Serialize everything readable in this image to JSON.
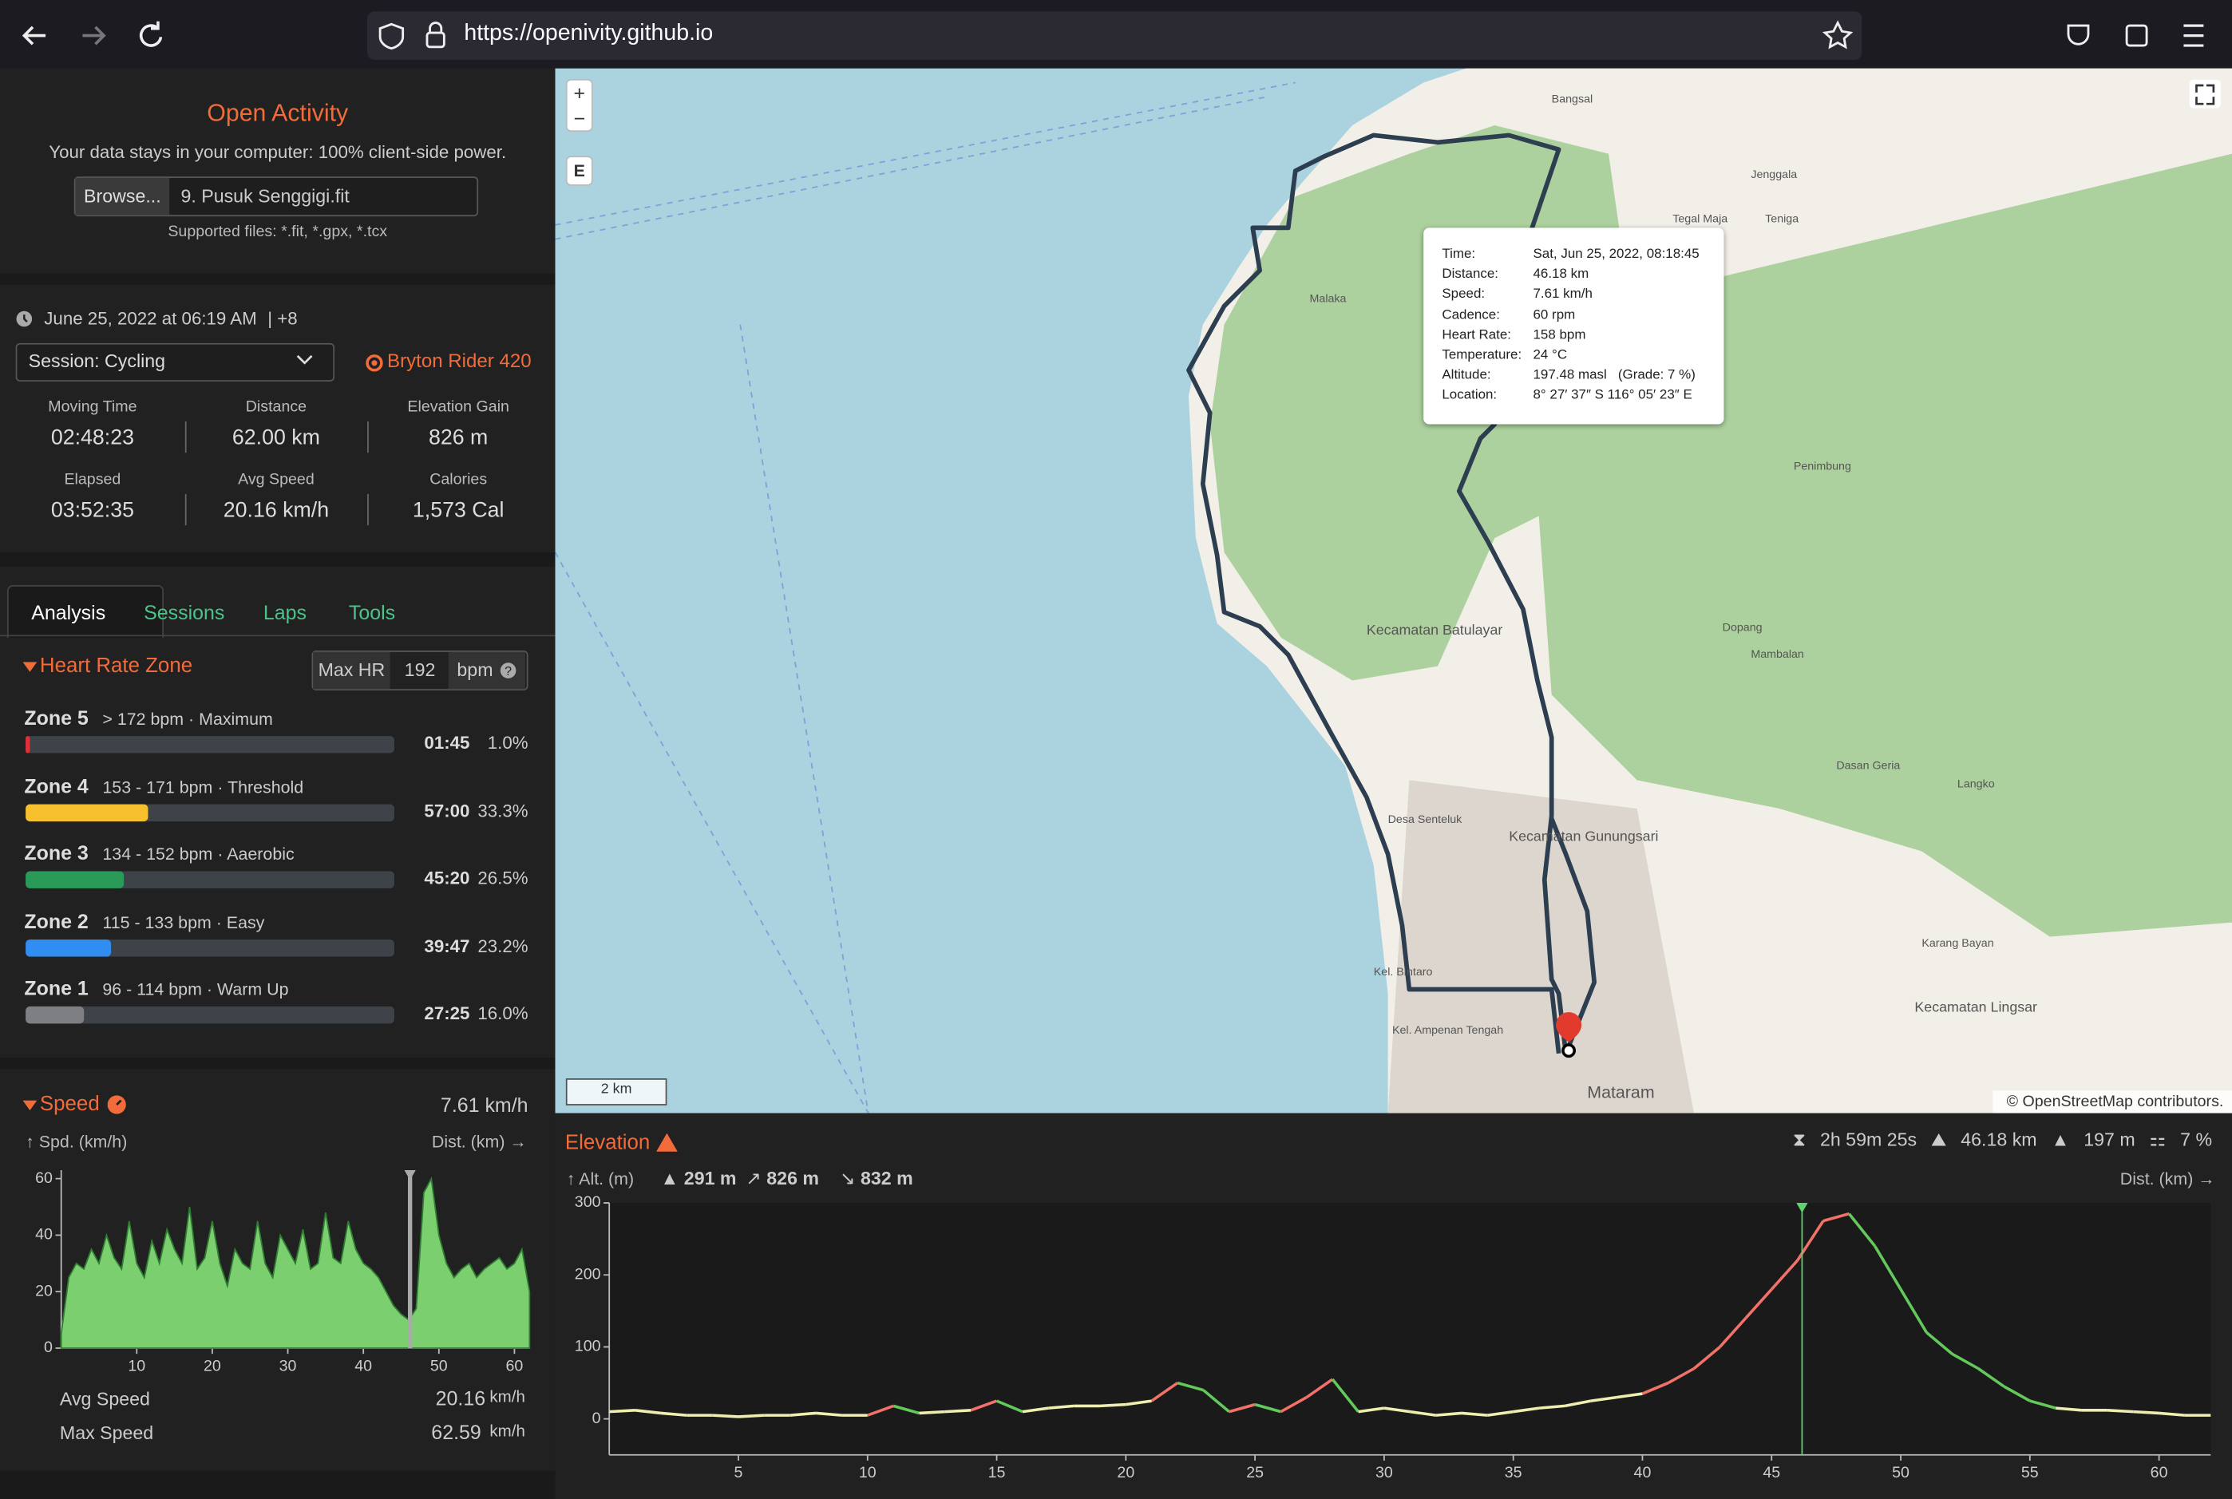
{
  "browser": {
    "url": "https://openivity.github.io"
  },
  "sidebar": {
    "title": "Open Activity",
    "tagline": "Your data stays in your computer: 100% client-side power.",
    "browse": "Browse...",
    "file": "9. Pusuk Senggigi.fit",
    "supported": "Supported files: *.fit, *.gpx, *.tcx"
  },
  "session": {
    "date": "June 25, 2022 at 06:19 AM",
    "tz": "| +8",
    "select": "Session: Cycling",
    "device": "Bryton Rider 420",
    "stats": [
      {
        "label": "Moving Time",
        "value": "02:48:23"
      },
      {
        "label": "Distance",
        "value": "62.00 km"
      },
      {
        "label": "Elevation Gain",
        "value": "826 m"
      },
      {
        "label": "Elapsed",
        "value": "03:52:35"
      },
      {
        "label": "Avg Speed",
        "value": "20.16 km/h"
      },
      {
        "label": "Calories",
        "value": "1,573 Cal"
      }
    ]
  },
  "tabs": [
    "Analysis",
    "Sessions",
    "Laps",
    "Tools"
  ],
  "hr_zone": {
    "title": "Heart Rate Zone",
    "max_hr_label": "Max HR",
    "max_hr": "192",
    "unit": "bpm",
    "zones": [
      {
        "name": "Zone 5",
        "range": "> 172 bpm · Maximum",
        "time": "01:45",
        "percent": 1.0,
        "percent_label": "1.0%",
        "color": "#e0303a"
      },
      {
        "name": "Zone 4",
        "range": "153 - 171 bpm · Threshold",
        "time": "57:00",
        "percent": 33.3,
        "percent_label": "33.3%",
        "color": "#f6c12c"
      },
      {
        "name": "Zone 3",
        "range": "134 - 152 bpm · Aaerobic",
        "time": "45:20",
        "percent": 26.5,
        "percent_label": "26.5%",
        "color": "#2a9a58"
      },
      {
        "name": "Zone 2",
        "range": "115 - 133 bpm · Easy",
        "time": "39:47",
        "percent": 23.2,
        "percent_label": "23.2%",
        "color": "#2f8ef0"
      },
      {
        "name": "Zone 1",
        "range": "96 - 114 bpm · Warm Up",
        "time": "27:25",
        "percent": 16.0,
        "percent_label": "16.0%",
        "color": "#7d7f83"
      }
    ]
  },
  "speed": {
    "type": "area",
    "title": "Speed",
    "current": "7.61 km/h",
    "y_label": "↑ Spd. (km/h)",
    "x_label": "Dist. (km) →",
    "color": "#7ccf6e",
    "xlim": [
      0,
      62
    ],
    "ylim": [
      0,
      63
    ],
    "xticks": [
      10,
      20,
      30,
      40,
      50,
      60
    ],
    "yticks": [
      0,
      20,
      40,
      60
    ],
    "cursor": 46.18,
    "x": [
      0,
      1,
      2,
      3,
      4,
      5,
      6,
      7,
      8,
      9,
      10,
      11,
      12,
      13,
      14,
      15,
      16,
      17,
      18,
      19,
      20,
      21,
      22,
      23,
      24,
      25,
      26,
      27,
      28,
      29,
      30,
      31,
      32,
      33,
      34,
      35,
      36,
      37,
      38,
      39,
      40,
      41,
      42,
      43,
      44,
      45,
      46,
      47,
      48,
      49,
      50,
      51,
      52,
      53,
      54,
      55,
      56,
      57,
      58,
      59,
      60,
      61,
      62
    ],
    "values": [
      5,
      25,
      30,
      28,
      35,
      30,
      40,
      32,
      28,
      45,
      30,
      25,
      38,
      30,
      42,
      35,
      30,
      50,
      28,
      32,
      45,
      30,
      22,
      35,
      30,
      28,
      45,
      30,
      25,
      40,
      35,
      30,
      42,
      28,
      30,
      48,
      32,
      30,
      45,
      35,
      30,
      28,
      25,
      20,
      15,
      12,
      10,
      14,
      55,
      60,
      40,
      30,
      25,
      28,
      30,
      25,
      28,
      30,
      32,
      28,
      30,
      35,
      20
    ],
    "avg_label": "Avg Speed",
    "avg": "20.16",
    "max_label": "Max Speed",
    "max": "62.59",
    "unit": "km/h"
  },
  "elevation": {
    "type": "line",
    "title": "Elevation",
    "summary": [
      "2h 59m 25s",
      "46.18 km",
      "197 m",
      "7 %"
    ],
    "y_label": "↑ Alt. (m)",
    "max": "291 m",
    "gain": "826 m",
    "loss": "832 m",
    "x_label": "Dist. (km) →",
    "xlim": [
      0,
      62
    ],
    "ylim": [
      -50,
      300
    ],
    "xticks": [
      5,
      10,
      15,
      20,
      25,
      30,
      35,
      40,
      45,
      50,
      55,
      60
    ],
    "yticks": [
      0,
      100,
      200,
      300
    ],
    "cursor": 46.18,
    "x": [
      0,
      1,
      2,
      3,
      4,
      5,
      6,
      7,
      8,
      9,
      10,
      11,
      12,
      13,
      14,
      15,
      16,
      17,
      18,
      19,
      20,
      21,
      22,
      23,
      24,
      25,
      26,
      27,
      28,
      29,
      30,
      31,
      32,
      33,
      34,
      35,
      36,
      37,
      38,
      39,
      40,
      41,
      42,
      43,
      44,
      45,
      46,
      47,
      48,
      49,
      50,
      51,
      52,
      53,
      54,
      55,
      56,
      57,
      58,
      59,
      60,
      61,
      62
    ],
    "values": [
      10,
      12,
      8,
      5,
      5,
      3,
      5,
      5,
      8,
      5,
      5,
      18,
      8,
      10,
      12,
      25,
      10,
      15,
      18,
      18,
      20,
      25,
      50,
      40,
      10,
      20,
      10,
      30,
      55,
      10,
      15,
      10,
      5,
      8,
      5,
      10,
      15,
      18,
      25,
      30,
      35,
      50,
      70,
      100,
      140,
      180,
      220,
      275,
      285,
      240,
      180,
      120,
      90,
      70,
      45,
      25,
      15,
      12,
      12,
      10,
      8,
      5,
      5
    ]
  },
  "map": {
    "zoom_in": "+",
    "zoom_out": "−",
    "layer": "E",
    "scale": "2 km",
    "attribution": "© OpenStreetMap contributors.",
    "labels": [
      "Mataram",
      "Kecamatan Batulayar",
      "Kecamatan Gunungsari",
      "Desa Senteluk",
      "Kel. Bintaro",
      "Penimbung",
      "Dopang",
      "Mambalan",
      "Karang Bayan",
      "Kecamatan Lingsar",
      "Langko",
      "Bangsal",
      "Malaka",
      "Tegal Maja",
      "Teniga",
      "Jenggala",
      "Dasan Geria",
      "Kel. Ampenan Tengah"
    ],
    "tooltip": [
      {
        "label": "Time:",
        "value": "Sat, Jun 25, 2022, 08:18:45"
      },
      {
        "label": "Distance:",
        "value": "46.18 km"
      },
      {
        "label": "Speed:",
        "value": "7.61 km/h"
      },
      {
        "label": "Cadence:",
        "value": "60 rpm"
      },
      {
        "label": "Heart Rate:",
        "value": "158 bpm"
      },
      {
        "label": "Temperature:",
        "value": "24 °C"
      },
      {
        "label": "Altitude:",
        "value": "197.48 masl   (Grade: 7 %)"
      },
      {
        "label": "Location:",
        "value": "8° 27′ 37″ S 116° 05′ 23″ E"
      }
    ]
  }
}
